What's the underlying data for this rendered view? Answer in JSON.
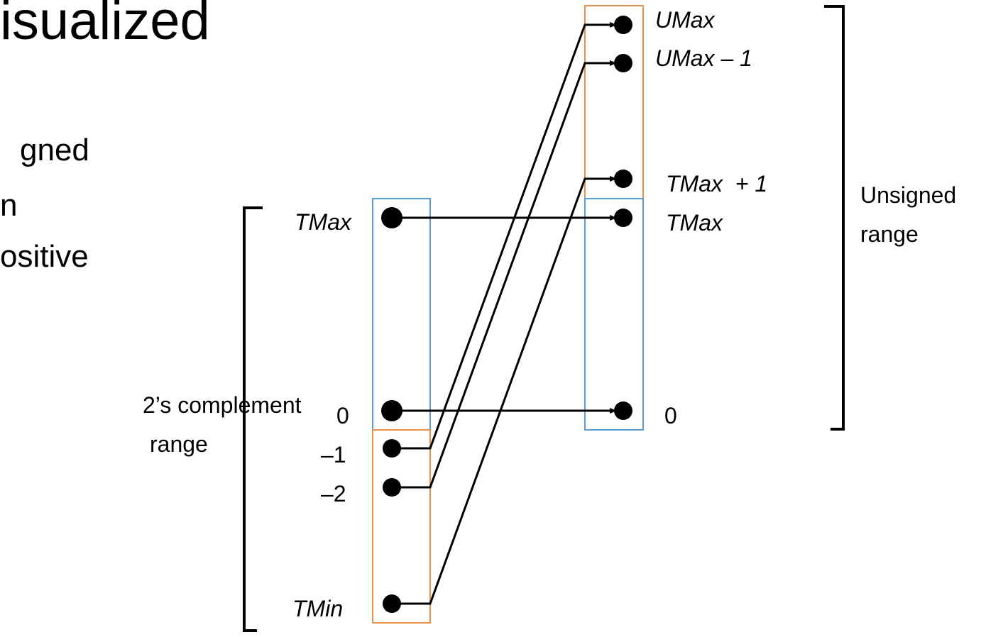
{
  "slide": {
    "title_fragment": "isualized",
    "bullet_fragments": [
      "gned",
      "n",
      "ositive"
    ]
  },
  "left_range": {
    "caption_line1": "2’s complement",
    "caption_line2": "range",
    "labels": {
      "tmax": "TMax",
      "zero": "0",
      "neg1": "–1",
      "neg2": "–2",
      "tmin": "TMin"
    }
  },
  "right_range": {
    "caption_line1": "Unsigned",
    "caption_line2": "range",
    "labels": {
      "umax": "UMax",
      "umax_minus1": "UMax – 1",
      "tmax_plus1": "TMax  + 1",
      "tmax": "TMax",
      "zero": "0"
    }
  },
  "colors": {
    "orange_box": "#E9914A",
    "blue_box": "#5B9BD5",
    "ink": "#000000"
  }
}
